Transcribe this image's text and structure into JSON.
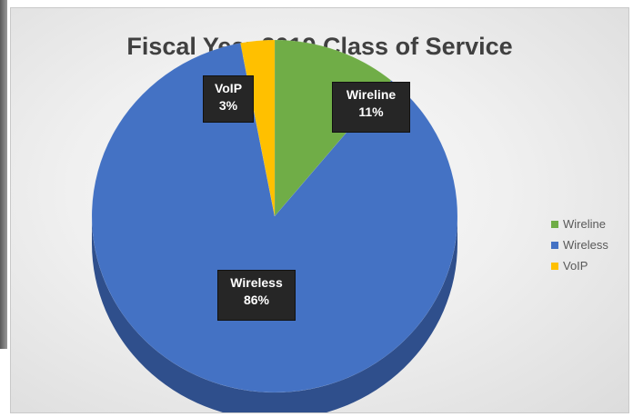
{
  "chart_data": {
    "type": "pie",
    "title": "Fiscal Year 2019 Class of Service",
    "categories": [
      "Wireline",
      "Wireless",
      "VoIP"
    ],
    "values": [
      11,
      86,
      3
    ],
    "value_labels": [
      "11%",
      "86%",
      "3%"
    ],
    "colors": [
      "#70ad47",
      "#4472c4",
      "#ffc000"
    ],
    "side_colors": [
      "#4a7a2c",
      "#2f4f8c",
      "#b88a00"
    ],
    "style": "3d",
    "legend_position": "right"
  }
}
